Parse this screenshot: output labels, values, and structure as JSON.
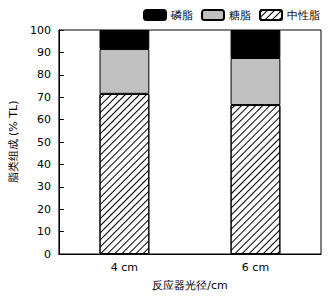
{
  "chart_data": {
    "type": "bar",
    "stacked": true,
    "x_label": "反应器光径/cm",
    "y_label": "脂类组成 (% TL)",
    "categories": [
      "4 cm",
      "6 cm"
    ],
    "series": [
      {
        "name": "中性脂",
        "color": "#ffffff",
        "values": [
          71.5,
          66.5
        ]
      },
      {
        "name": "糖脂",
        "color": "#c0c0c0",
        "values": [
          20,
          21
        ]
      },
      {
        "name": "磷脂",
        "color": "#000000",
        "values": [
          8.5,
          12.5
        ]
      }
    ],
    "ylim": [
      0,
      100
    ],
    "yticks": [
      0,
      10,
      20,
      30,
      40,
      50,
      60,
      70,
      80,
      90,
      100
    ],
    "grid": false,
    "legend": "top"
  }
}
